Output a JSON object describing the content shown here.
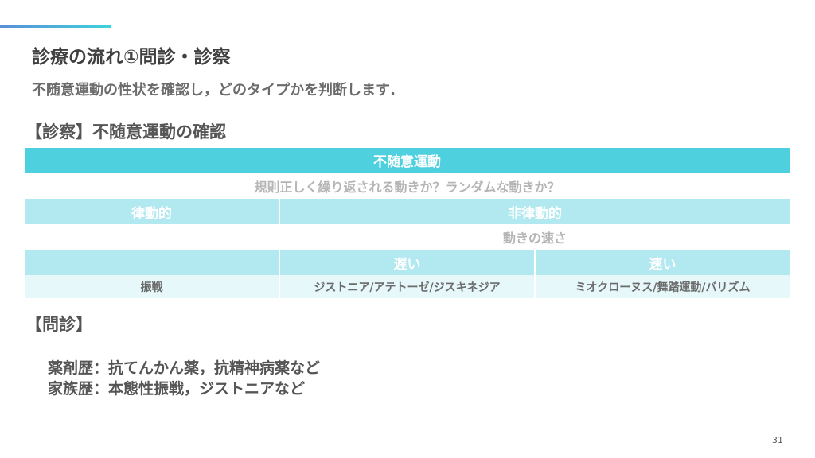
{
  "slide": {
    "title": "診療の流れ①問診・診察",
    "subtitle": "不随意運動の性状を確認し，どのタイプかを判断します．",
    "exam_heading": "【診察】不随意運動の確認",
    "interview_heading": "【問診】",
    "history": [
      "薬剤歴：抗てんかん薬，抗精神病薬など",
      "家族歴：本態性振戦，ジストニアなど"
    ],
    "page_number": "31",
    "accent_color": "#4fd0de"
  },
  "table": {
    "header": "不随意運動",
    "question1": "規則正しく繰り返される動きか？ランダムな動きか？",
    "rhythmic": "律動的",
    "nonrhythmic": "非律動的",
    "question2": "動きの速さ",
    "slow": "遅い",
    "fast": "速い",
    "rhythmic_type": "振戦",
    "slow_types": "ジストニア/アテトーゼ/ジスキネジア",
    "fast_types": "ミオクローヌス/舞踏運動/バリズム"
  }
}
